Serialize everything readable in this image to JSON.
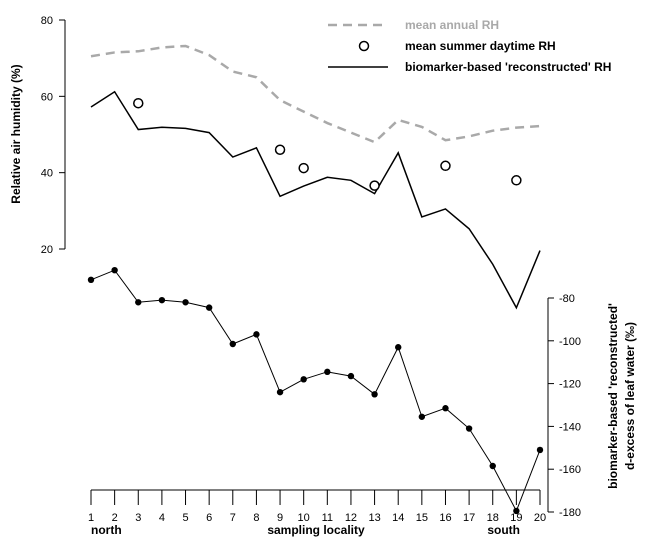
{
  "chart_data": {
    "type": "line",
    "xlabel": "sampling locality",
    "x_end_labels": {
      "left": "north",
      "right": "south"
    },
    "x": [
      1,
      2,
      3,
      4,
      5,
      6,
      7,
      8,
      9,
      10,
      11,
      12,
      13,
      14,
      15,
      16,
      17,
      18,
      19,
      20
    ],
    "xlim": [
      1,
      20
    ],
    "y_left": {
      "label": "Relative air humidity (%)",
      "ticks": [
        20,
        40,
        60,
        80
      ],
      "range": [
        20,
        80
      ]
    },
    "y_right": {
      "label_line1": "biomarker-based 'reconstructed'",
      "label_line2": "d-excess of leaf water (‰)",
      "ticks": [
        -80,
        -100,
        -120,
        -140,
        -160,
        -180
      ],
      "range": [
        -180,
        -80
      ]
    },
    "series": [
      {
        "name": "mean annual RH",
        "axis": "left",
        "style": "dashed",
        "color": "#a9a9a9",
        "values": [
          70.5,
          71.5,
          71.8,
          72.8,
          73.2,
          70.8,
          66.5,
          65.0,
          59.0,
          56.0,
          53.0,
          50.5,
          48.0,
          53.8,
          52.0,
          48.5,
          49.5,
          51.0,
          51.8,
          52.2
        ]
      },
      {
        "name": "mean summer daytime RH",
        "axis": "left",
        "style": "open-circle",
        "color": "#000000",
        "points": [
          [
            3,
            58.2
          ],
          [
            9,
            46.0
          ],
          [
            10,
            41.2
          ],
          [
            13,
            36.6
          ],
          [
            16,
            41.8
          ],
          [
            19,
            38.0
          ]
        ]
      },
      {
        "name": "biomarker-based 'reconstructed' RH",
        "axis": "left",
        "style": "solid",
        "color": "#000000",
        "values": [
          57.2,
          61.2,
          51.3,
          51.9,
          51.6,
          50.5,
          44.1,
          46.5,
          33.8,
          36.5,
          38.8,
          38.0,
          34.5,
          45.2,
          28.4,
          30.5,
          25.3,
          16.0,
          4.6,
          19.6
        ]
      },
      {
        "axis": "right",
        "style": "solid-with-dots",
        "color": "#000000",
        "values": [
          -71.5,
          -67.0,
          -82.0,
          -81.0,
          -82.0,
          -84.5,
          -101.5,
          -97.0,
          -124.0,
          -118.0,
          -114.5,
          -116.5,
          -125.0,
          -103.0,
          -135.5,
          -131.5,
          -141.0,
          -158.5,
          -179.5,
          -151.0
        ]
      }
    ]
  }
}
